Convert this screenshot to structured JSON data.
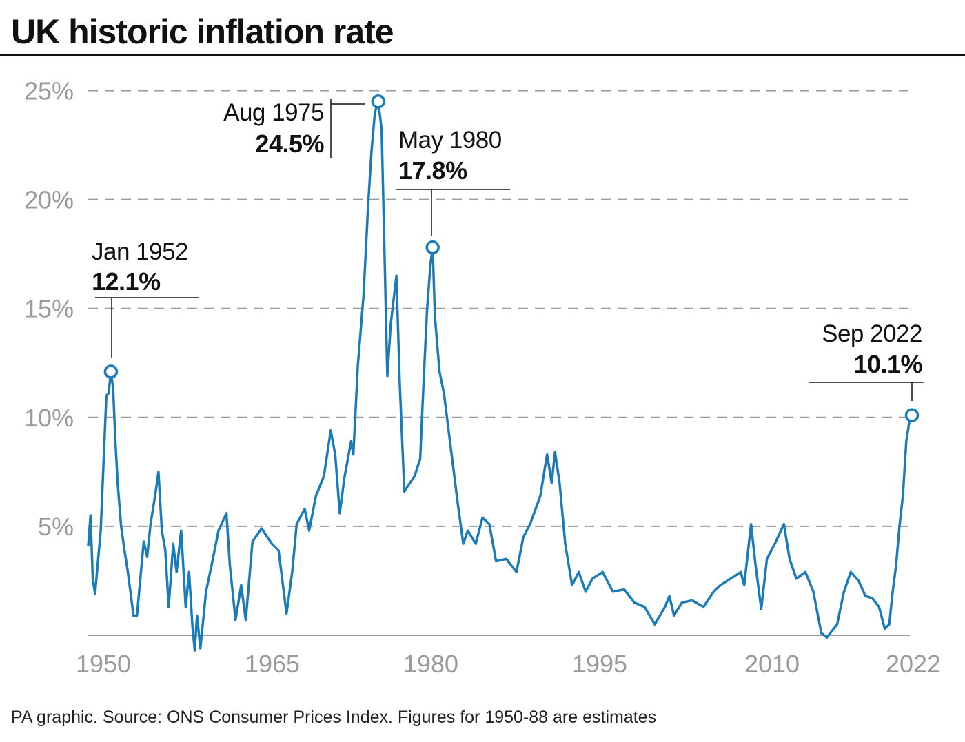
{
  "chart_data": {
    "type": "line",
    "title": "UK historic inflation rate",
    "source": "PA graphic. Source: ONS Consumer Prices Index. Figures for 1950-88 are estimates",
    "xlabel": "",
    "ylabel": "",
    "xlim": [
      1950,
      2022.7
    ],
    "ylim": [
      0,
      25
    ],
    "x_ticks": [
      "1950",
      "1965",
      "1980",
      "1995",
      "2010",
      "2022"
    ],
    "y_ticks": [
      {
        "value": 5,
        "label": "5%"
      },
      {
        "value": 10,
        "label": "10%"
      },
      {
        "value": 15,
        "label": "15%"
      },
      {
        "value": 20,
        "label": "20%"
      },
      {
        "value": 25,
        "label": "25%"
      }
    ],
    "grid": "horizontal dashed",
    "line_color": "#1b7bb6",
    "series": [
      {
        "x": [
          1950.0,
          1950.2,
          1950.4,
          1950.6,
          1951.1,
          1951.6,
          1951.8,
          1952.0,
          1952.2,
          1952.4,
          1952.6,
          1952.9,
          1953.2,
          1953.5,
          1954.0,
          1954.3,
          1954.6,
          1954.9,
          1955.2,
          1955.5,
          1955.9,
          1956.2,
          1956.5,
          1956.8,
          1957.1,
          1957.5,
          1957.8,
          1958.2,
          1958.6,
          1958.9,
          1959.2,
          1959.4,
          1959.6,
          1959.9,
          1960.4,
          1961.0,
          1961.5,
          1962.2,
          1962.5,
          1963.0,
          1963.5,
          1963.9,
          1964.5,
          1965.3,
          1966.2,
          1966.8,
          1967.5,
          1968.0,
          1968.4,
          1969.1,
          1969.5,
          1970.1,
          1970.8,
          1971.4,
          1971.8,
          1972.2,
          1972.6,
          1973.2,
          1973.4,
          1973.8,
          1974.3,
          1974.7,
          1975.0,
          1975.3,
          1975.6,
          1975.9,
          1976.1,
          1976.4,
          1976.7,
          1977.2,
          1977.5,
          1977.9,
          1978.4,
          1978.8,
          1979.3,
          1979.6,
          1979.9,
          1980.2,
          1980.4,
          1980.6,
          1981.0,
          1981.4,
          1982.0,
          1982.6,
          1983.1,
          1983.5,
          1984.2,
          1984.8,
          1985.4,
          1986.0,
          1986.9,
          1987.8,
          1988.4,
          1989.0,
          1989.9,
          1990.5,
          1990.9,
          1991.2,
          1991.6,
          1992.1,
          1992.7,
          1993.3,
          1993.9,
          1994.5,
          1995.4,
          1996.3,
          1997.3,
          1998.2,
          1999.1,
          2000.0,
          2000.9,
          2001.3,
          2001.7,
          2002.4,
          2003.3,
          2004.3,
          2005.2,
          2005.8,
          2006.7,
          2007.6,
          2007.9,
          2008.5,
          2008.9,
          2009.4,
          2009.9,
          2010.6,
          2011.4,
          2011.9,
          2012.5,
          2013.3,
          2014.0,
          2014.7,
          2015.2,
          2016.1,
          2016.7,
          2017.3,
          2018.0,
          2018.6,
          2019.2,
          2019.8,
          2020.3,
          2020.7,
          2021.0,
          2021.3,
          2021.6,
          2021.9,
          2022.2,
          2022.5,
          2022.7
        ],
        "y": [
          4.1,
          5.5,
          2.6,
          1.9,
          4.8,
          11.0,
          11.1,
          12.1,
          11.3,
          8.9,
          7.0,
          5.0,
          3.9,
          2.9,
          0.9,
          0.9,
          2.6,
          4.3,
          3.6,
          5.1,
          6.4,
          7.5,
          4.8,
          3.9,
          1.3,
          4.2,
          2.9,
          4.8,
          1.3,
          2.9,
          0.4,
          -0.7,
          0.9,
          -0.6,
          2.0,
          3.5,
          4.8,
          5.6,
          3.2,
          0.7,
          2.3,
          0.7,
          4.3,
          4.9,
          4.2,
          3.9,
          1.0,
          2.9,
          5.1,
          5.8,
          4.8,
          6.4,
          7.3,
          9.4,
          8.3,
          5.6,
          7.2,
          8.9,
          8.3,
          12.4,
          15.6,
          19.7,
          22.2,
          24.0,
          24.5,
          23.2,
          18.7,
          11.9,
          14.3,
          16.5,
          11.5,
          6.6,
          7.0,
          7.3,
          8.1,
          11.6,
          14.9,
          17.0,
          17.8,
          14.6,
          12.1,
          11.1,
          8.6,
          6.1,
          4.2,
          4.8,
          4.2,
          5.4,
          5.1,
          3.4,
          3.5,
          2.9,
          4.5,
          5.1,
          6.4,
          8.3,
          7.0,
          8.4,
          7.0,
          4.2,
          2.3,
          2.9,
          2.0,
          2.6,
          2.9,
          2.0,
          2.1,
          1.5,
          1.3,
          0.5,
          1.3,
          1.8,
          0.9,
          1.5,
          1.6,
          1.3,
          2.0,
          2.3,
          2.6,
          2.9,
          2.3,
          5.1,
          3.2,
          1.2,
          3.5,
          4.2,
          5.1,
          3.5,
          2.6,
          2.9,
          2.0,
          0.1,
          -0.1,
          0.5,
          2.0,
          2.9,
          2.5,
          1.8,
          1.7,
          1.3,
          0.3,
          0.5,
          2.0,
          3.2,
          5.0,
          6.4,
          8.9,
          9.9,
          10.1
        ]
      }
    ],
    "annotations": [
      {
        "date": "Jan 1952",
        "value_label": "12.1%",
        "x": 1952.0,
        "y": 12.1
      },
      {
        "date": "Aug 1975",
        "value_label": "24.5%",
        "x": 1975.6,
        "y": 24.5
      },
      {
        "date": "May 1980",
        "value_label": "17.8%",
        "x": 1980.4,
        "y": 17.8
      },
      {
        "date": "Sep 2022",
        "value_label": "10.1%",
        "x": 2022.7,
        "y": 10.1
      }
    ]
  }
}
